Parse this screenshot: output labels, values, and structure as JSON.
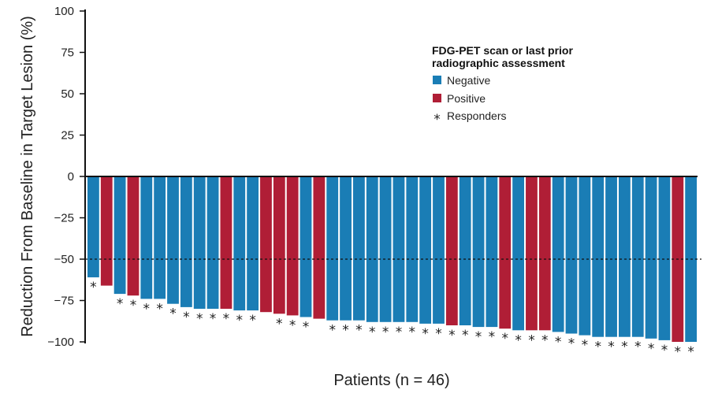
{
  "chart_data": {
    "type": "bar",
    "title": "",
    "xlabel": "Patients (n = 46)",
    "ylabel": "Reduction From Baseline in Target Lesion (%)",
    "ylim": [
      -100,
      100
    ],
    "yticks": [
      "100",
      "75",
      "50",
      "25",
      "0",
      "−25",
      "−50",
      "−75",
      "−100"
    ],
    "reference_line": {
      "y": -50,
      "style": "dashed"
    },
    "legend": {
      "placement": "top-right",
      "title": "FDG-PET scan or last prior radiographic assessment",
      "title_lines": [
        "FDG-PET scan or last prior",
        "radiographic assessment"
      ],
      "items": [
        {
          "label": "Negative",
          "color": "#1a7db5",
          "marker": "square"
        },
        {
          "label": "Positive",
          "color": "#b01e36",
          "marker": "square"
        },
        {
          "label": "Responders",
          "marker": "asterisk"
        }
      ]
    },
    "responder_symbol": "*",
    "colors": {
      "Negative": "#1a7db5",
      "Positive": "#b01e36"
    },
    "values": [
      -61,
      -66,
      -71,
      -72,
      -74,
      -74,
      -77,
      -79,
      -80,
      -80,
      -80,
      -81,
      -81,
      -82,
      -83,
      -84,
      -85,
      -86,
      -87,
      -87,
      -87,
      -88,
      -88,
      -88,
      -88,
      -89,
      -89,
      -90,
      -90,
      -91,
      -91,
      -92,
      -93,
      -93,
      -93,
      -94,
      -95,
      -96,
      -97,
      -97,
      -97,
      -97,
      -98,
      -99,
      -100,
      -100
    ],
    "groups": [
      "Negative",
      "Positive",
      "Negative",
      "Positive",
      "Negative",
      "Negative",
      "Negative",
      "Negative",
      "Negative",
      "Negative",
      "Positive",
      "Negative",
      "Negative",
      "Positive",
      "Positive",
      "Positive",
      "Negative",
      "Positive",
      "Negative",
      "Negative",
      "Negative",
      "Negative",
      "Negative",
      "Negative",
      "Negative",
      "Negative",
      "Negative",
      "Positive",
      "Negative",
      "Negative",
      "Negative",
      "Positive",
      "Negative",
      "Positive",
      "Positive",
      "Negative",
      "Negative",
      "Negative",
      "Negative",
      "Negative",
      "Negative",
      "Negative",
      "Negative",
      "Negative",
      "Positive",
      "Negative"
    ],
    "responders": [
      true,
      false,
      true,
      true,
      true,
      true,
      true,
      true,
      true,
      true,
      true,
      true,
      true,
      false,
      true,
      true,
      true,
      false,
      true,
      true,
      true,
      true,
      true,
      true,
      true,
      true,
      true,
      true,
      true,
      true,
      true,
      true,
      true,
      true,
      true,
      true,
      true,
      true,
      true,
      true,
      true,
      true,
      true,
      true,
      true,
      true
    ]
  }
}
